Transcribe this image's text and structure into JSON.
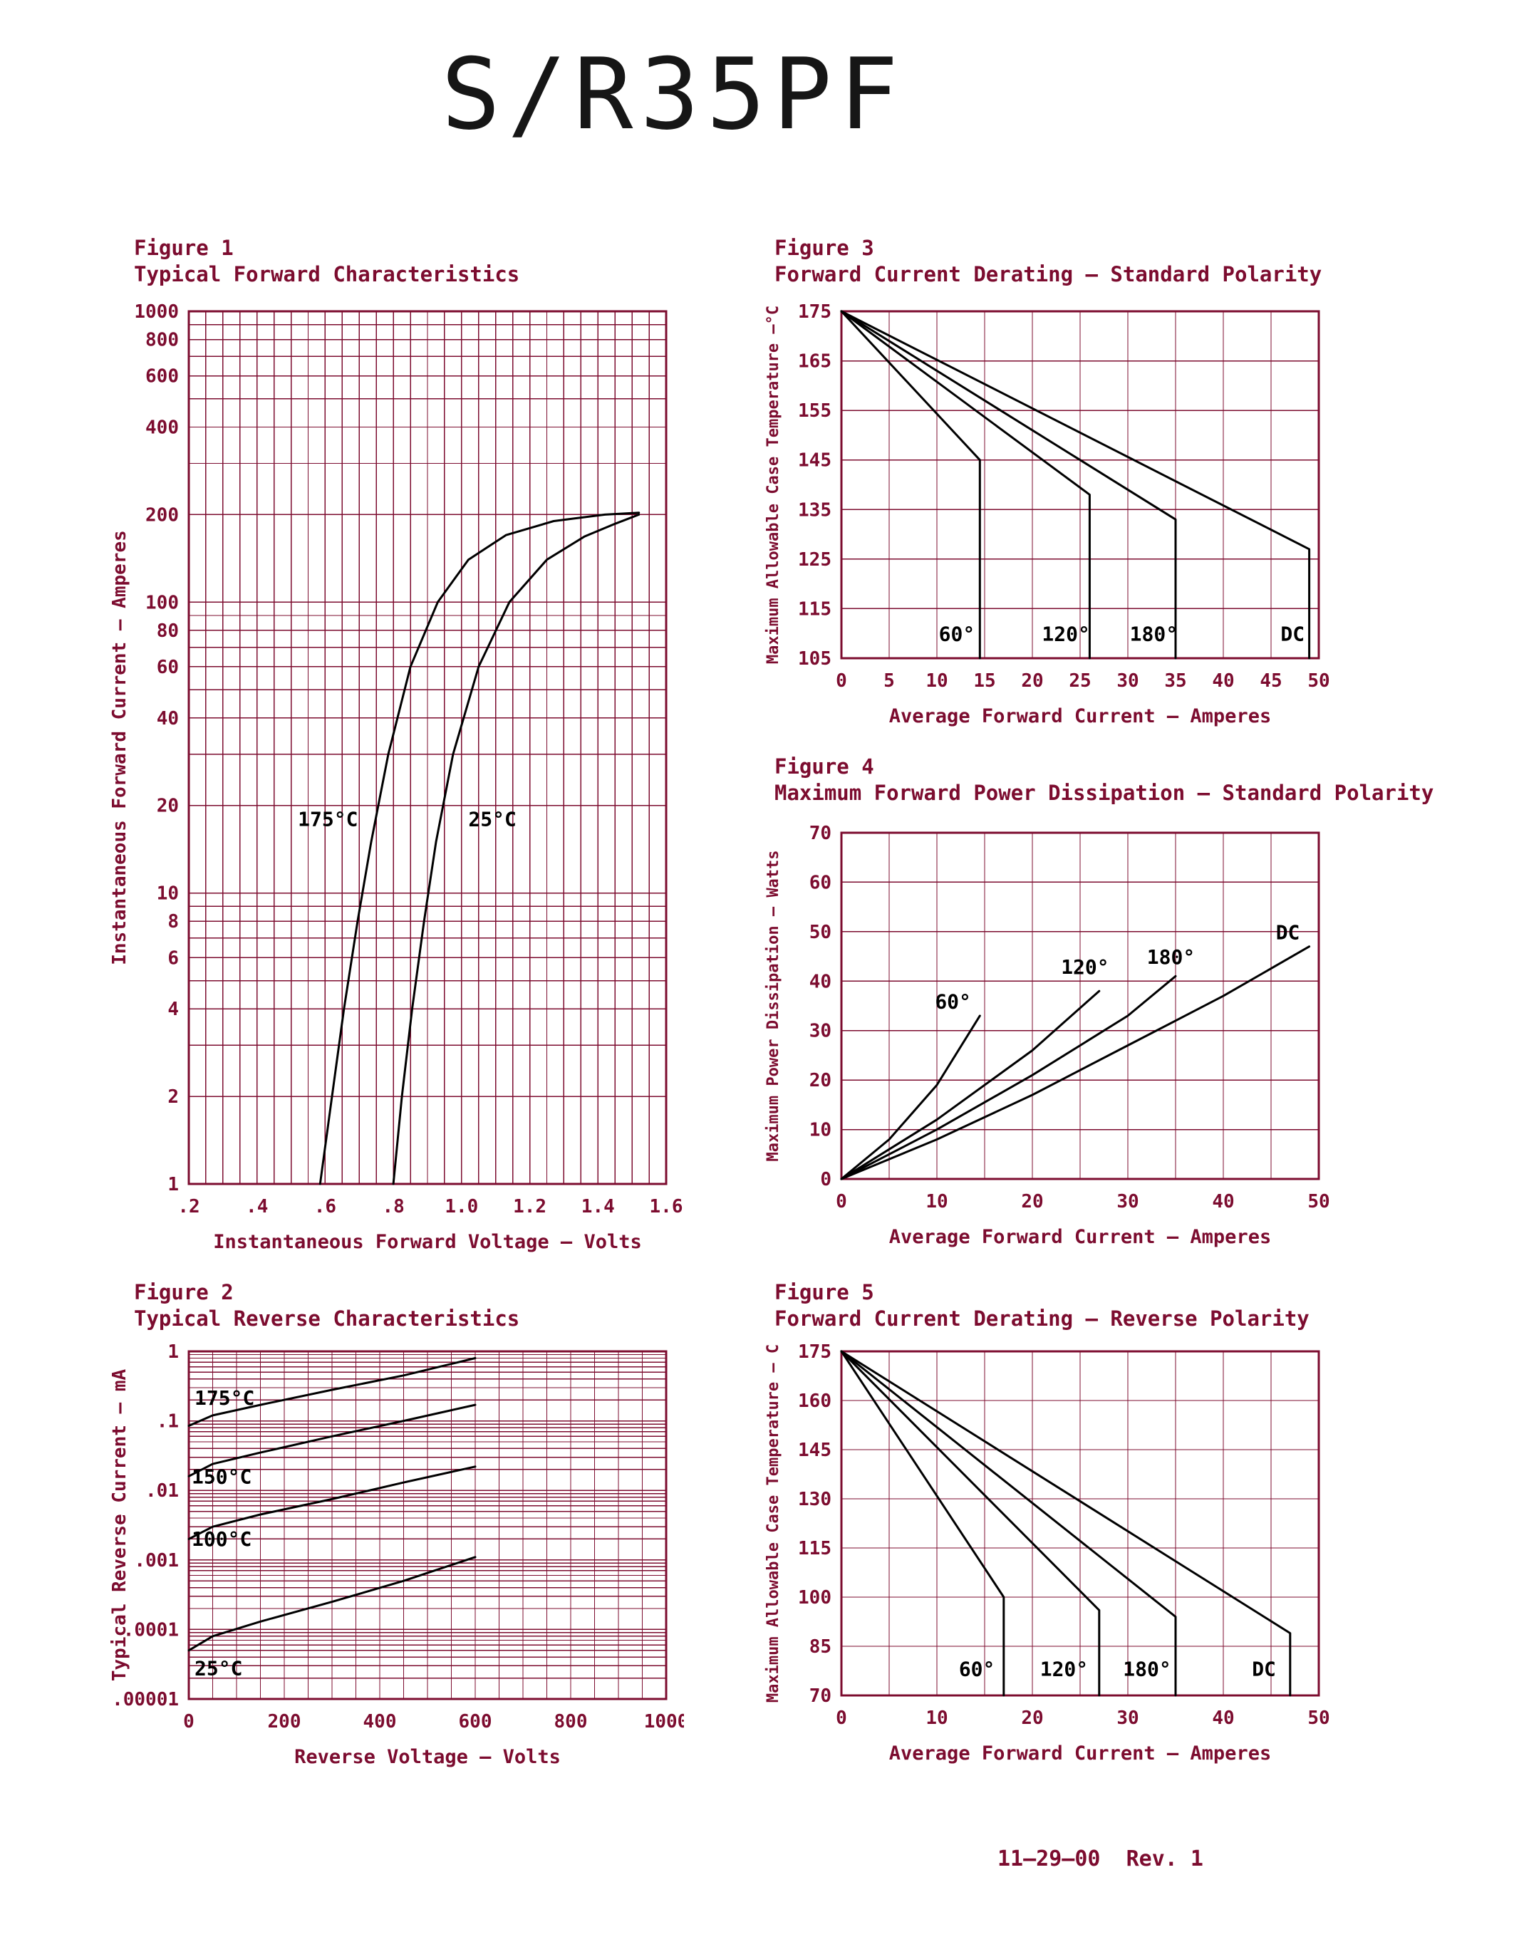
{
  "page": {
    "title": "S/R35PF",
    "footer": "11—29—00  Rev. 1"
  },
  "colors": {
    "accent": "#7c0c2f",
    "curve": "#000000",
    "background": "#ffffff"
  },
  "chart_data": [
    {
      "id": "figure-1",
      "label": "Figure 1",
      "title": "Typical Forward Characteristics",
      "type": "line",
      "x": {
        "scale": "linear",
        "min": 0.2,
        "max": 1.6,
        "grid_step": 0.05,
        "title": "Instantaneous Forward Voltage — Volts",
        "ticks": [
          {
            "v": 0.2,
            "label": ".2"
          },
          {
            "v": 0.4,
            "label": ".4"
          },
          {
            "v": 0.6,
            "label": ".6"
          },
          {
            "v": 0.8,
            "label": ".8"
          },
          {
            "v": 1.0,
            "label": "1.0"
          },
          {
            "v": 1.2,
            "label": "1.2"
          },
          {
            "v": 1.4,
            "label": "1.4"
          },
          {
            "v": 1.6,
            "label": "1.6"
          }
        ]
      },
      "y": {
        "scale": "log",
        "min": 1,
        "max": 1000,
        "title": "Instantaneous Forward Current — Amperes",
        "ticks": [
          {
            "v": 1000,
            "label": "1000"
          },
          {
            "v": 800,
            "label": "800"
          },
          {
            "v": 600,
            "label": "600"
          },
          {
            "v": 400,
            "label": "400"
          },
          {
            "v": 200,
            "label": "200"
          },
          {
            "v": 100,
            "label": "100"
          },
          {
            "v": 80,
            "label": "80"
          },
          {
            "v": 60,
            "label": "60"
          },
          {
            "v": 40,
            "label": "40"
          },
          {
            "v": 20,
            "label": "20"
          },
          {
            "v": 10,
            "label": "10"
          },
          {
            "v": 8,
            "label": "8"
          },
          {
            "v": 6,
            "label": "6"
          },
          {
            "v": 4,
            "label": "4"
          },
          {
            "v": 2,
            "label": "2"
          },
          {
            "v": 1,
            "label": "1"
          }
        ]
      },
      "series": [
        {
          "name": "175°C",
          "label_at": [
            0.52,
            17
          ],
          "points": [
            [
              0.585,
              1
            ],
            [
              0.62,
              2
            ],
            [
              0.655,
              4
            ],
            [
              0.695,
              8
            ],
            [
              0.735,
              15
            ],
            [
              0.785,
              30
            ],
            [
              0.85,
              60
            ],
            [
              0.93,
              100
            ],
            [
              1.02,
              140
            ],
            [
              1.13,
              170
            ],
            [
              1.27,
              190
            ],
            [
              1.42,
              200
            ],
            [
              1.52,
              203
            ]
          ]
        },
        {
          "name": "25°C",
          "label_at": [
            1.02,
            17
          ],
          "points": [
            [
              0.8,
              1
            ],
            [
              0.825,
              2
            ],
            [
              0.855,
              4
            ],
            [
              0.89,
              8
            ],
            [
              0.925,
              15
            ],
            [
              0.975,
              30
            ],
            [
              1.05,
              60
            ],
            [
              1.14,
              100
            ],
            [
              1.25,
              140
            ],
            [
              1.36,
              168
            ],
            [
              1.45,
              186
            ],
            [
              1.52,
              200
            ]
          ]
        }
      ]
    },
    {
      "id": "figure-2",
      "label": "Figure 2",
      "title": "Typical Reverse Characteristics",
      "type": "line",
      "x": {
        "scale": "linear",
        "min": 0,
        "max": 1000,
        "grid_step": 50,
        "title": "Reverse Voltage — Volts",
        "ticks": [
          {
            "v": 0,
            "label": "0"
          },
          {
            "v": 200,
            "label": "200"
          },
          {
            "v": 400,
            "label": "400"
          },
          {
            "v": 600,
            "label": "600"
          },
          {
            "v": 800,
            "label": "800"
          },
          {
            "v": 1000,
            "label": "1000"
          }
        ]
      },
      "y": {
        "scale": "log",
        "min": 1e-05,
        "max": 1,
        "title": "Typical Reverse Current — mA",
        "ticks": [
          {
            "v": 1,
            "label": "1"
          },
          {
            "v": 0.1,
            "label": ".1"
          },
          {
            "v": 0.01,
            "label": ".01"
          },
          {
            "v": 0.001,
            "label": ".001"
          },
          {
            "v": 0.0001,
            "label": ".0001"
          },
          {
            "v": 1e-05,
            "label": ".00001"
          }
        ]
      },
      "series": [
        {
          "name": "175°C",
          "label_at": [
            12,
            0.17
          ],
          "points": [
            [
              0,
              0.085
            ],
            [
              50,
              0.12
            ],
            [
              150,
              0.17
            ],
            [
              300,
              0.28
            ],
            [
              450,
              0.45
            ],
            [
              600,
              0.8
            ]
          ]
        },
        {
          "name": "150°C",
          "label_at": [
            6,
            0.0125
          ],
          "points": [
            [
              0,
              0.016
            ],
            [
              50,
              0.024
            ],
            [
              150,
              0.035
            ],
            [
              300,
              0.06
            ],
            [
              450,
              0.1
            ],
            [
              600,
              0.17
            ]
          ]
        },
        {
          "name": "100°C",
          "label_at": [
            6,
            0.0016
          ],
          "points": [
            [
              0,
              0.002
            ],
            [
              50,
              0.003
            ],
            [
              150,
              0.0045
            ],
            [
              300,
              0.0075
            ],
            [
              450,
              0.013
            ],
            [
              600,
              0.022
            ]
          ]
        },
        {
          "name": "25°C",
          "label_at": [
            12,
            2.2e-05
          ],
          "points": [
            [
              0,
              5e-05
            ],
            [
              50,
              8e-05
            ],
            [
              150,
              0.00013
            ],
            [
              300,
              0.00025
            ],
            [
              450,
              0.0005
            ],
            [
              600,
              0.0011
            ]
          ]
        }
      ]
    },
    {
      "id": "figure-3",
      "label": "Figure 3",
      "title": "Forward Current Derating — Standard Polarity",
      "type": "line",
      "x": {
        "scale": "linear",
        "min": 0,
        "max": 50,
        "grid_step": 5,
        "title": "Average Forward Current — Amperes",
        "ticks": [
          {
            "v": 0,
            "label": "0"
          },
          {
            "v": 5,
            "label": "5"
          },
          {
            "v": 10,
            "label": "10"
          },
          {
            "v": 15,
            "label": "15"
          },
          {
            "v": 20,
            "label": "20"
          },
          {
            "v": 25,
            "label": "25"
          },
          {
            "v": 30,
            "label": "30"
          },
          {
            "v": 35,
            "label": "35"
          },
          {
            "v": 40,
            "label": "40"
          },
          {
            "v": 45,
            "label": "45"
          },
          {
            "v": 50,
            "label": "50"
          }
        ]
      },
      "y": {
        "scale": "linear",
        "min": 105,
        "max": 175,
        "grid_step": 10,
        "title": "Maximum Allowable Case Temperature —°C",
        "ticks": [
          {
            "v": 175,
            "label": "175"
          },
          {
            "v": 165,
            "label": "165"
          },
          {
            "v": 155,
            "label": "155"
          },
          {
            "v": 145,
            "label": "145"
          },
          {
            "v": 135,
            "label": "135"
          },
          {
            "v": 125,
            "label": "125"
          },
          {
            "v": 115,
            "label": "115"
          },
          {
            "v": 105,
            "label": "105"
          }
        ]
      },
      "series": [
        {
          "name": "60°",
          "label_at": [
            10.2,
            108.5
          ],
          "points": [
            [
              0,
              175
            ],
            [
              14.5,
              145
            ],
            [
              14.5,
              105
            ]
          ]
        },
        {
          "name": "120°",
          "label_at": [
            21,
            108.5
          ],
          "points": [
            [
              0,
              175
            ],
            [
              26,
              138
            ],
            [
              26,
              105
            ]
          ]
        },
        {
          "name": "180°",
          "label_at": [
            30.2,
            108.5
          ],
          "points": [
            [
              0,
              175
            ],
            [
              35,
              133
            ],
            [
              35,
              105
            ]
          ]
        },
        {
          "name": "DC",
          "label_at": [
            46,
            108.5
          ],
          "points": [
            [
              0,
              175
            ],
            [
              49,
              127
            ],
            [
              49,
              105
            ]
          ]
        }
      ]
    },
    {
      "id": "figure-4",
      "label": "Figure 4",
      "title": "Maximum Forward Power Dissipation — Standard Polarity",
      "type": "line",
      "x": {
        "scale": "linear",
        "min": 0,
        "max": 50,
        "grid_step": 5,
        "title": "Average Forward Current — Amperes",
        "ticks": [
          {
            "v": 0,
            "label": "0"
          },
          {
            "v": 10,
            "label": "10"
          },
          {
            "v": 20,
            "label": "20"
          },
          {
            "v": 30,
            "label": "30"
          },
          {
            "v": 40,
            "label": "40"
          },
          {
            "v": 50,
            "label": "50"
          }
        ]
      },
      "y": {
        "scale": "linear",
        "min": 0,
        "max": 70,
        "grid_step": 10,
        "title": "Maximum Power Dissipation — Watts",
        "ticks": [
          {
            "v": 70,
            "label": "70"
          },
          {
            "v": 60,
            "label": "60"
          },
          {
            "v": 50,
            "label": "50"
          },
          {
            "v": 40,
            "label": "40"
          },
          {
            "v": 30,
            "label": "30"
          },
          {
            "v": 20,
            "label": "20"
          },
          {
            "v": 10,
            "label": "10"
          },
          {
            "v": 0,
            "label": "0"
          }
        ]
      },
      "series": [
        {
          "name": "60°",
          "label_at": [
            9.8,
            34.5
          ],
          "points": [
            [
              0,
              0
            ],
            [
              5,
              8
            ],
            [
              10,
              19
            ],
            [
              14.5,
              33
            ]
          ]
        },
        {
          "name": "120°",
          "label_at": [
            23,
            41.5
          ],
          "points": [
            [
              0,
              0
            ],
            [
              10,
              12
            ],
            [
              20,
              26
            ],
            [
              27,
              38
            ]
          ]
        },
        {
          "name": "180°",
          "label_at": [
            32,
            43.5
          ],
          "points": [
            [
              0,
              0
            ],
            [
              10,
              10
            ],
            [
              20,
              21
            ],
            [
              30,
              33
            ],
            [
              35,
              41
            ]
          ]
        },
        {
          "name": "DC",
          "label_at": [
            45.5,
            48.5
          ],
          "points": [
            [
              0,
              0
            ],
            [
              10,
              8
            ],
            [
              20,
              17
            ],
            [
              30,
              27
            ],
            [
              40,
              37
            ],
            [
              49,
              47
            ]
          ]
        }
      ]
    },
    {
      "id": "figure-5",
      "label": "Figure 5",
      "title": "Forward Current Derating — Reverse Polarity",
      "type": "line",
      "x": {
        "scale": "linear",
        "min": 0,
        "max": 50,
        "grid_step": 5,
        "title": "Average Forward Current — Amperes",
        "ticks": [
          {
            "v": 0,
            "label": "0"
          },
          {
            "v": 10,
            "label": "10"
          },
          {
            "v": 20,
            "label": "20"
          },
          {
            "v": 30,
            "label": "30"
          },
          {
            "v": 40,
            "label": "40"
          },
          {
            "v": 50,
            "label": "50"
          }
        ]
      },
      "y": {
        "scale": "linear",
        "min": 70,
        "max": 175,
        "grid_step": 15,
        "title": "Maximum Allowable Case Temperature — C",
        "ticks": [
          {
            "v": 175,
            "label": "175"
          },
          {
            "v": 160,
            "label": "160"
          },
          {
            "v": 145,
            "label": "145"
          },
          {
            "v": 130,
            "label": "130"
          },
          {
            "v": 115,
            "label": "115"
          },
          {
            "v": 100,
            "label": "100"
          },
          {
            "v": 85,
            "label": "85"
          },
          {
            "v": 70,
            "label": "70"
          }
        ]
      },
      "series": [
        {
          "name": "60°",
          "label_at": [
            12.3,
            76
          ],
          "points": [
            [
              0,
              175
            ],
            [
              17,
              100
            ],
            [
              17,
              70
            ]
          ]
        },
        {
          "name": "120°",
          "label_at": [
            20.8,
            76
          ],
          "points": [
            [
              0,
              175
            ],
            [
              27,
              96
            ],
            [
              27,
              70
            ]
          ]
        },
        {
          "name": "180°",
          "label_at": [
            29.5,
            76
          ],
          "points": [
            [
              0,
              175
            ],
            [
              35,
              94
            ],
            [
              35,
              70
            ]
          ]
        },
        {
          "name": "DC",
          "label_at": [
            43,
            76
          ],
          "points": [
            [
              0,
              175
            ],
            [
              47,
              89
            ],
            [
              47,
              70
            ]
          ]
        }
      ]
    }
  ]
}
